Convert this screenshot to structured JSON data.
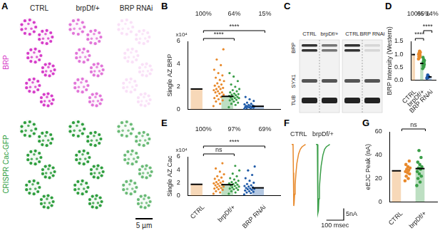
{
  "figure": {
    "panel_a": {
      "label": "A",
      "columns": [
        "CTRL",
        "brpDf/+",
        "BRP RNAi"
      ],
      "rows": [
        "BRP",
        "CRISPR Cac-GFP"
      ],
      "scale_bar": "5 µm"
    },
    "panel_c": {
      "label": "C",
      "groups": [
        [
          "CTRL",
          "brpDf/+"
        ],
        [
          "CTRL",
          "BRP RNAi"
        ]
      ],
      "bands": [
        "BRP",
        "SYX1",
        "TUB"
      ]
    }
  },
  "chart_data": [
    {
      "panel": "B",
      "type": "strip",
      "categories": [
        "CTRL",
        "brpDf/+",
        "BRP RNAi"
      ],
      "colors": [
        "#e8892b",
        "#3a9e48",
        "#1f5aa8"
      ],
      "values": [
        1.8,
        1.15,
        0.28
      ],
      "points": [
        [
          0.3,
          0.5,
          0.7,
          0.8,
          0.9,
          1.0,
          1.1,
          1.2,
          1.3,
          1.4,
          1.5,
          1.5,
          1.6,
          1.7,
          1.8,
          1.8,
          1.9,
          2.0,
          2.1,
          2.2,
          2.3,
          2.5,
          2.6,
          2.8,
          3.0,
          3.2,
          3.5,
          3.9,
          4.4,
          5.3
        ],
        [
          0.2,
          0.4,
          0.5,
          0.6,
          0.7,
          0.8,
          0.85,
          0.9,
          1.0,
          1.0,
          1.05,
          1.1,
          1.15,
          1.2,
          1.25,
          1.3,
          1.35,
          1.4,
          1.5,
          1.6,
          1.7,
          1.8,
          2.0,
          2.2,
          2.5,
          2.9,
          3.2
        ],
        [
          0.05,
          0.1,
          0.12,
          0.15,
          0.18,
          0.2,
          0.22,
          0.25,
          0.28,
          0.3,
          0.32,
          0.35,
          0.4,
          0.45,
          0.5,
          0.6,
          0.75,
          0.9,
          1.1
        ]
      ],
      "y_label": "Single AZ BRP",
      "y_unit": "x10⁴",
      "ylim": [
        0,
        6
      ],
      "yticks": [
        0,
        2,
        4,
        6
      ],
      "percentages": [
        "100%",
        "64%",
        "15%"
      ],
      "significance": [
        {
          "between": [
            "CTRL",
            "brpDf/+"
          ],
          "label": "****"
        },
        {
          "between": [
            "CTRL",
            "BRP RNAi"
          ],
          "label": "****"
        }
      ],
      "tick_labels": "y",
      "grid": false
    },
    {
      "panel": "D",
      "type": "bar",
      "categories": [
        "CTRL",
        "brpDf/+",
        "BRP RNAi"
      ],
      "colors": [
        "#e8892b",
        "#3a9e48",
        "#1f5aa8"
      ],
      "values": [
        0.99,
        0.65,
        0.13
      ],
      "points": [
        [
          0.82,
          0.88,
          0.92,
          0.95,
          0.98,
          1.0,
          1.02,
          1.05,
          1.08,
          1.12
        ],
        [
          0.45,
          0.52,
          0.56,
          0.6,
          0.63,
          0.65,
          0.68,
          0.72,
          0.76,
          0.8,
          0.88
        ],
        [
          0.08,
          0.1,
          0.12,
          0.15,
          0.2
        ]
      ],
      "y_label": "BRP Intensity (Western)",
      "ylim": [
        0,
        1.5
      ],
      "yticks": [
        {
          "value": 0,
          "label": "0.0"
        },
        0.5,
        {
          "value": 1,
          "label": "1.0"
        },
        1.5
      ],
      "percentages": [
        "100%",
        "65%",
        "14%"
      ],
      "significance": [
        {
          "between": [
            "CTRL",
            "brpDf/+"
          ],
          "label": "****"
        },
        {
          "between": [
            "brpDf/+",
            "BRP RNAi"
          ],
          "label": "****"
        }
      ],
      "grid": false
    },
    {
      "panel": "E",
      "type": "strip",
      "categories": [
        "CTRL",
        "brpDf/+",
        "BRP RNAi"
      ],
      "colors": [
        "#e8892b",
        "#3a9e48",
        "#1f5aa8"
      ],
      "values": [
        1.75,
        1.7,
        1.21
      ],
      "points": [
        [
          0.3,
          0.5,
          0.7,
          0.9,
          1.0,
          1.1,
          1.2,
          1.3,
          1.4,
          1.5,
          1.6,
          1.7,
          1.8,
          1.9,
          2.0,
          2.1,
          2.2,
          2.4,
          2.6,
          2.8,
          3.0,
          3.3,
          3.7,
          4.2,
          5.0
        ],
        [
          0.3,
          0.5,
          0.7,
          0.9,
          1.0,
          1.1,
          1.2,
          1.3,
          1.4,
          1.5,
          1.6,
          1.7,
          1.8,
          1.9,
          2.0,
          2.1,
          2.3,
          2.5,
          2.7,
          3.0,
          3.4,
          3.9,
          4.6
        ],
        [
          0.2,
          0.4,
          0.5,
          0.6,
          0.7,
          0.8,
          0.9,
          1.0,
          1.05,
          1.1,
          1.2,
          1.3,
          1.4,
          1.5,
          1.6,
          1.8,
          2.0,
          2.3,
          2.7,
          3.2,
          3.9,
          4.5
        ]
      ],
      "y_label": "Single AZ Cac",
      "y_unit": "x10⁴",
      "ylim": [
        0,
        6
      ],
      "yticks": [
        0,
        2,
        4,
        6
      ],
      "percentages": [
        "100%",
        "97%",
        "69%"
      ],
      "significance": [
        {
          "between": [
            "CTRL",
            "brpDf/+"
          ],
          "label": "ns"
        },
        {
          "between": [
            "CTRL",
            "BRP RNAi"
          ],
          "label": "****"
        }
      ],
      "grid": false
    },
    {
      "panel": "F",
      "type": "line",
      "series": [
        {
          "name": "CTRL",
          "color": "#e8892b",
          "x": [
            0,
            8,
            10,
            12,
            14,
            17,
            20,
            25,
            30,
            40,
            50,
            60,
            80
          ],
          "values": [
            0,
            0,
            -12,
            -26,
            -25,
            -21,
            -17,
            -12,
            -8,
            -4,
            -2,
            -1,
            0
          ]
        },
        {
          "name": "brpDf/+",
          "color": "#3a9e48",
          "x": [
            140,
            148,
            150,
            152,
            154,
            157,
            160,
            165,
            170,
            180,
            190,
            200,
            220
          ],
          "values": [
            0,
            0,
            -13,
            -29,
            -28,
            -23,
            -18,
            -13,
            -9,
            -4.5,
            -2,
            -1,
            0
          ]
        }
      ],
      "xlim": [
        0,
        300
      ],
      "ylim": [
        -32,
        2
      ],
      "scale_bar": {
        "y": 5,
        "y_label": "5nA",
        "x": 100,
        "x_label": "100 msec"
      },
      "tick_labels": false,
      "grid": false
    },
    {
      "panel": "G",
      "type": "bar",
      "categories": [
        "CTRL",
        "brpDf/+"
      ],
      "colors": [
        "#e8892b",
        "#3a9e48"
      ],
      "values": [
        26.6,
        28.5
      ],
      "points": [
        [
          18,
          20,
          22,
          24,
          25,
          26,
          27,
          28,
          29,
          30,
          32,
          35
        ],
        [
          14,
          17,
          20,
          22,
          24,
          26,
          28,
          29,
          30,
          32,
          34,
          38,
          44
        ]
      ],
      "y_label": "eEJC Peak (nA)",
      "ylim": [
        0,
        60
      ],
      "yticks": [
        0,
        20,
        40,
        60
      ],
      "significance": [
        {
          "between": [
            "CTRL",
            "brpDf/+"
          ],
          "label": "ns"
        }
      ],
      "grid": false
    }
  ]
}
